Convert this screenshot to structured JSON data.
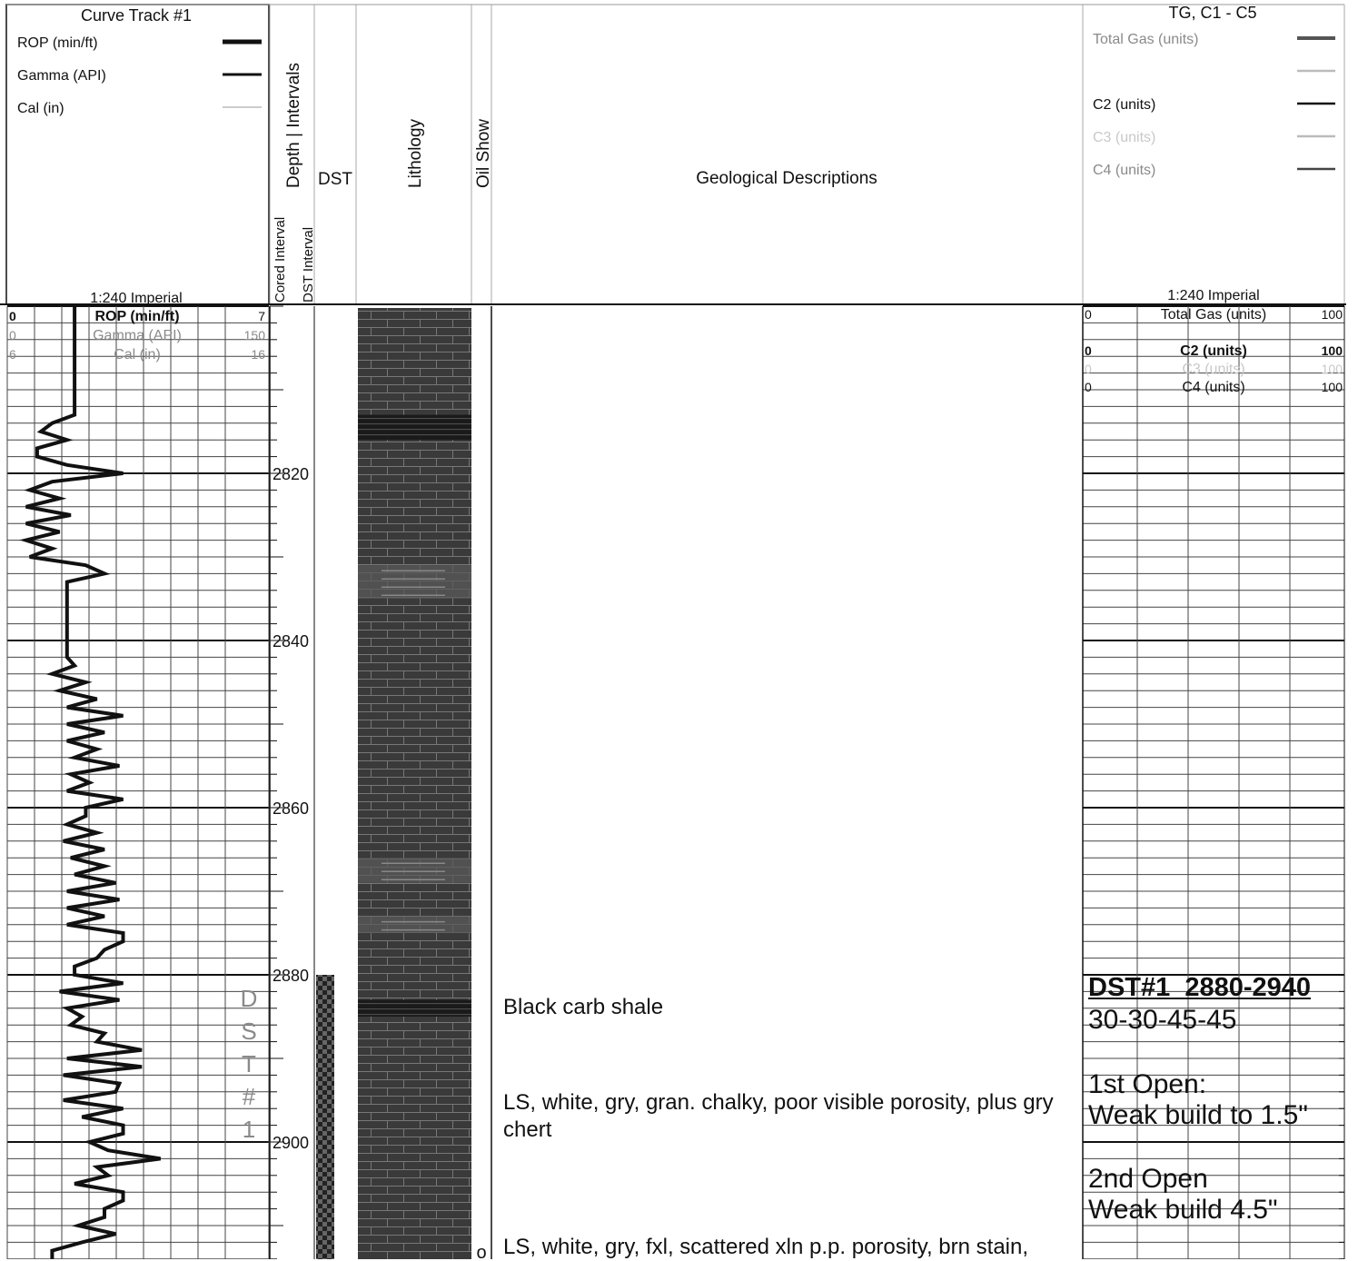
{
  "header": {
    "curve_track": {
      "title": "Curve Track #1",
      "legend": [
        {
          "label": "ROP (min/ft)",
          "color": "#111111"
        },
        {
          "label": "Gamma (API)",
          "color": "#111111"
        },
        {
          "label": "Cal (in)",
          "color": "#bbbbbb"
        }
      ],
      "scale": "1:240 Imperial"
    },
    "columns": {
      "depth_intervals": "Depth | Intervals",
      "cored_interval": "Cored Interval",
      "dst_interval": "DST Interval",
      "dst": "DST",
      "lithology": "Lithology",
      "oil_show": "Oil Show",
      "geological_descriptions": "Geological Descriptions"
    },
    "gas_track": {
      "title": "TG, C1 - C5",
      "legend": [
        {
          "label": "Total Gas (units)",
          "color": "#555555"
        },
        {
          "label": "",
          "color": "#bbbbbb"
        },
        {
          "label": "C2 (units)",
          "color": "#111111"
        },
        {
          "label": "C3 (units)",
          "color": "#bbbbbb"
        },
        {
          "label": "C4 (units)",
          "color": "#444444"
        }
      ],
      "scale": "1:240 Imperial"
    }
  },
  "curve_scales": [
    {
      "min": "0",
      "name": "ROP (min/ft)",
      "max": "7"
    },
    {
      "min": "0",
      "name": "Gamma (API)",
      "max": "150"
    },
    {
      "min": "6",
      "name": "Cal (in)",
      "max": "16"
    }
  ],
  "gas_scales": [
    {
      "min": "0",
      "name": "Total Gas (units)",
      "max": "100"
    },
    {
      "min": "",
      "name": "",
      "max": ""
    },
    {
      "min": "0",
      "name": "C2 (units)",
      "max": "100"
    },
    {
      "min": "0",
      "name": "C3 (units)",
      "max": "100"
    },
    {
      "min": "0",
      "name": "C4 (units)",
      "max": "100"
    }
  ],
  "chart_data": {
    "type": "line",
    "depth_range": [
      2800,
      2914
    ],
    "depth_labels": [
      2820,
      2840,
      2860,
      2880,
      2900
    ],
    "grid": true,
    "series": [
      {
        "name": "ROP (min/ft)",
        "xlim": [
          0,
          7
        ],
        "points": [
          [
            2800,
            1.8
          ],
          [
            2813,
            1.8
          ],
          [
            2814,
            1.2
          ],
          [
            2815,
            0.9
          ],
          [
            2816,
            1.6
          ],
          [
            2817,
            0.8
          ],
          [
            2818,
            0.8
          ],
          [
            2819,
            1.6
          ],
          [
            2820,
            3.1
          ],
          [
            2821,
            1.2
          ],
          [
            2822,
            0.6
          ],
          [
            2823,
            1.4
          ],
          [
            2824,
            0.5
          ],
          [
            2825,
            1.7
          ],
          [
            2826,
            0.5
          ],
          [
            2827,
            1.4
          ],
          [
            2828,
            0.5
          ],
          [
            2829,
            1.2
          ],
          [
            2830,
            0.6
          ],
          [
            2831,
            2.1
          ],
          [
            2832,
            2.6
          ],
          [
            2833,
            1.6
          ],
          [
            2834,
            1.6
          ],
          [
            2835,
            1.6
          ],
          [
            2836,
            1.6
          ],
          [
            2837,
            1.6
          ],
          [
            2838,
            1.6
          ],
          [
            2839,
            1.6
          ],
          [
            2840,
            1.6
          ],
          [
            2841,
            1.6
          ],
          [
            2842,
            1.6
          ],
          [
            2843,
            1.8
          ],
          [
            2844,
            1.2
          ],
          [
            2845,
            2.1
          ],
          [
            2846,
            1.4
          ],
          [
            2847,
            2.4
          ],
          [
            2848,
            1.6
          ],
          [
            2849,
            3.1
          ],
          [
            2850,
            1.6
          ],
          [
            2851,
            2.6
          ],
          [
            2852,
            1.6
          ],
          [
            2853,
            2.4
          ],
          [
            2854,
            1.8
          ],
          [
            2855,
            3.0
          ],
          [
            2856,
            1.7
          ],
          [
            2857,
            2.2
          ],
          [
            2858,
            1.6
          ],
          [
            2859,
            3.1
          ],
          [
            2860,
            2.1
          ],
          [
            2861,
            2.1
          ],
          [
            2862,
            1.6
          ],
          [
            2863,
            2.4
          ],
          [
            2864,
            1.5
          ],
          [
            2865,
            2.6
          ],
          [
            2866,
            1.7
          ],
          [
            2867,
            2.6
          ],
          [
            2868,
            1.8
          ],
          [
            2869,
            2.9
          ],
          [
            2870,
            1.6
          ],
          [
            2871,
            3.0
          ],
          [
            2872,
            1.6
          ],
          [
            2873,
            2.6
          ],
          [
            2874,
            1.6
          ],
          [
            2875,
            3.1
          ],
          [
            2876,
            3.1
          ],
          [
            2877,
            2.6
          ],
          [
            2878,
            2.4
          ],
          [
            2879,
            1.8
          ],
          [
            2880,
            1.8
          ],
          [
            2881,
            3.1
          ],
          [
            2882,
            1.4
          ],
          [
            2883,
            3.0
          ],
          [
            2884,
            1.6
          ],
          [
            2885,
            2.0
          ],
          [
            2886,
            1.7
          ],
          [
            2887,
            2.6
          ],
          [
            2888,
            2.4
          ],
          [
            2889,
            3.6
          ],
          [
            2890,
            1.6
          ],
          [
            2891,
            3.6
          ],
          [
            2892,
            1.5
          ],
          [
            2893,
            3.0
          ],
          [
            2894,
            2.9
          ],
          [
            2895,
            1.5
          ],
          [
            2896,
            3.1
          ],
          [
            2897,
            2.0
          ],
          [
            2898,
            3.1
          ],
          [
            2899,
            3.1
          ],
          [
            2900,
            2.2
          ],
          [
            2901,
            2.7
          ],
          [
            2902,
            4.1
          ],
          [
            2903,
            2.4
          ],
          [
            2904,
            2.7
          ],
          [
            2905,
            1.8
          ],
          [
            2906,
            3.1
          ],
          [
            2907,
            3.1
          ],
          [
            2908,
            2.6
          ],
          [
            2909,
            2.6
          ],
          [
            2910,
            1.9
          ],
          [
            2911,
            2.9
          ],
          [
            2912,
            2.0
          ],
          [
            2913,
            1.2
          ],
          [
            2914,
            1.2
          ]
        ]
      }
    ],
    "dst_interval": [
      2880,
      2914
    ],
    "dst_label": [
      "D",
      "S",
      "T",
      "#",
      "1"
    ],
    "lithology_dark_bands": [
      [
        2813,
        2816
      ],
      [
        2883,
        2885
      ]
    ],
    "lithology_light_bands": [
      [
        2831,
        2835
      ],
      [
        2866,
        2869
      ],
      [
        2873,
        2875
      ]
    ]
  },
  "descriptions": [
    {
      "text": "Black carb shale"
    },
    {
      "text": "LS, white, gry, gran. chalky, poor visible porosity, plus gry chert"
    },
    {
      "text": "LS, white, gry, fxl, scattered xln p.p. porosity, brn stain,"
    }
  ],
  "oil_show_marker": "o",
  "dst_notes": {
    "title": "DST#1  2880-2940",
    "times": "30-30-45-45",
    "first_open_label": "1st Open:",
    "first_open_text": "Weak build to 1.5\"",
    "second_open_label": "2nd Open",
    "second_open_text": "Weak build 4.5\""
  }
}
